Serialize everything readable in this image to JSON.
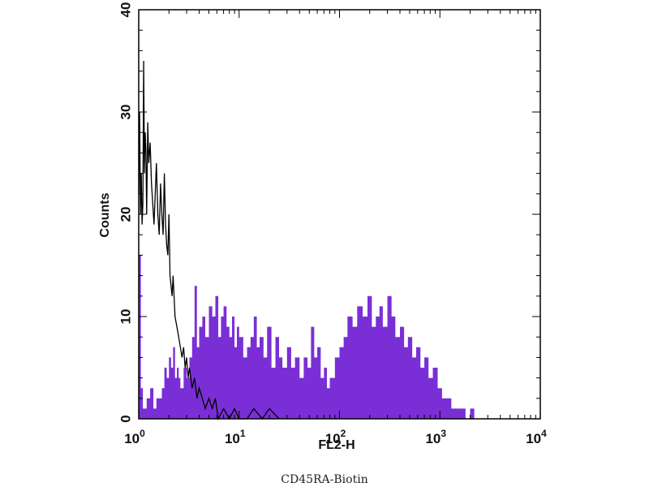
{
  "chart_data": {
    "type": "area",
    "xscale": "log",
    "xlim": [
      1,
      10000
    ],
    "ylim": [
      0,
      40
    ],
    "xlabel": "FL2-H",
    "ylabel": "Counts",
    "caption": "CD45RA-Biotin",
    "x_ticks": [
      {
        "base": "10",
        "exp": "0",
        "value": 1
      },
      {
        "base": "10",
        "exp": "1",
        "value": 10
      },
      {
        "base": "10",
        "exp": "2",
        "value": 100
      },
      {
        "base": "10",
        "exp": "3",
        "value": 1000
      },
      {
        "base": "10",
        "exp": "4",
        "value": 10000
      }
    ],
    "y_ticks": [
      {
        "label": "0",
        "value": 0
      },
      {
        "label": "10",
        "value": 10
      },
      {
        "label": "20",
        "value": 20
      },
      {
        "label": "30",
        "value": 30
      },
      {
        "label": "40",
        "value": 40
      }
    ],
    "series": [
      {
        "style": "filled",
        "color": "#7a2fd6",
        "x": [
          1,
          1.05,
          1.1,
          1.2,
          1.3,
          1.4,
          1.5,
          1.6,
          1.7,
          1.8,
          1.9,
          2,
          2.1,
          2.2,
          2.3,
          2.4,
          2.5,
          2.6,
          2.8,
          3,
          3.2,
          3.4,
          3.6,
          3.8,
          4,
          4.3,
          4.6,
          5,
          5.4,
          5.8,
          6.2,
          6.6,
          7,
          7.5,
          8,
          8.5,
          9,
          9.5,
          10,
          11,
          12,
          13,
          14,
          15,
          16,
          17.5,
          19,
          21,
          23,
          25,
          27,
          30,
          33,
          36,
          40,
          44,
          48,
          52,
          56,
          60,
          65,
          70,
          75,
          80,
          90,
          100,
          110,
          120,
          135,
          150,
          170,
          190,
          210,
          230,
          250,
          270,
          300,
          330,
          360,
          400,
          440,
          480,
          530,
          580,
          640,
          700,
          770,
          850,
          950,
          1050,
          1150,
          1300,
          1450,
          1600,
          1800,
          2000,
          2200,
          2500
        ],
        "y": [
          16,
          3,
          1,
          2,
          3,
          1,
          2,
          2,
          3,
          5,
          4,
          6,
          5,
          7,
          4,
          5,
          4,
          3,
          5,
          4,
          6,
          8,
          13,
          7,
          9,
          10,
          8,
          11,
          10,
          12,
          8,
          10,
          11,
          9,
          8,
          10,
          7,
          9,
          8,
          6,
          7,
          8,
          10,
          7,
          8,
          6,
          9,
          5,
          8,
          6,
          5,
          7,
          5,
          6,
          4,
          6,
          5,
          9,
          6,
          7,
          4,
          5,
          3,
          4,
          6,
          7,
          8,
          10,
          9,
          11,
          10,
          12,
          9,
          10,
          11,
          9,
          12,
          10,
          8,
          9,
          7,
          8,
          6,
          7,
          5,
          6,
          4,
          5,
          3,
          2,
          2,
          1,
          1,
          1,
          0,
          1,
          0,
          0
        ]
      },
      {
        "style": "outline",
        "color": "#000000",
        "x": [
          1,
          1.02,
          1.04,
          1.06,
          1.08,
          1.1,
          1.12,
          1.14,
          1.16,
          1.18,
          1.2,
          1.23,
          1.26,
          1.3,
          1.34,
          1.38,
          1.42,
          1.46,
          1.5,
          1.55,
          1.6,
          1.65,
          1.7,
          1.75,
          1.8,
          1.85,
          1.9,
          1.95,
          2,
          2.05,
          2.1,
          2.15,
          2.2,
          2.3,
          2.4,
          2.5,
          2.6,
          2.7,
          2.8,
          2.9,
          3,
          3.1,
          3.2,
          3.4,
          3.6,
          3.8,
          4,
          4.3,
          4.6,
          5,
          5.4,
          5.8,
          6.2,
          7,
          8,
          9,
          10,
          12,
          14,
          17,
          20,
          25
        ],
        "y": [
          22,
          30,
          20,
          24,
          19,
          21,
          35,
          24,
          28,
          26,
          20,
          29,
          25,
          27,
          23,
          21,
          19,
          22,
          25,
          20,
          18,
          23,
          20,
          18,
          24,
          19,
          17,
          16,
          20,
          14,
          13,
          12,
          14,
          10,
          9,
          8,
          7,
          6,
          7,
          5,
          6,
          4,
          5,
          3,
          4,
          2,
          3,
          2,
          1,
          2,
          1,
          2,
          0,
          1,
          0,
          1,
          0,
          0,
          1,
          0,
          1,
          0
        ]
      }
    ]
  }
}
